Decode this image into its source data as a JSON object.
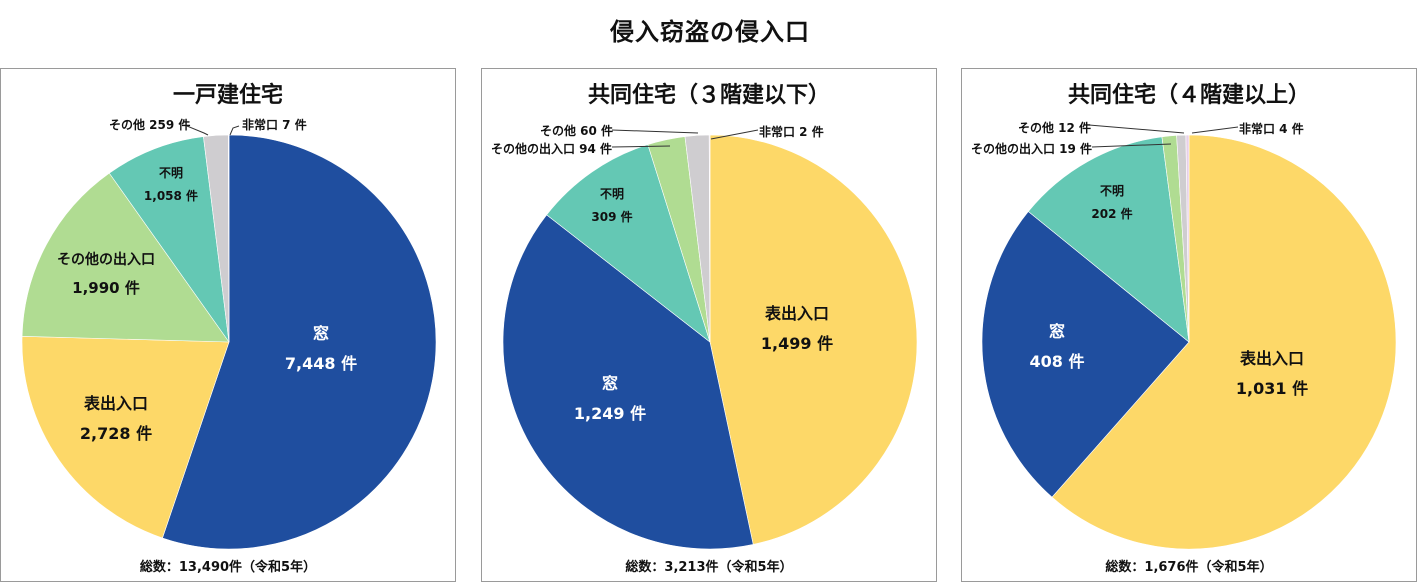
{
  "title": "侵入窃盗の侵入口",
  "colors": {
    "窓": "#1f4e9f",
    "表出入口": "#fdd868",
    "その他の出入口": "#b0dc92",
    "不明": "#64c8b4",
    "その他": "#cfcdd0",
    "非常口": "#e8d0e8"
  },
  "panels": [
    {
      "title": "一戸建住宅",
      "total_label": "総数：13,490件（令和5年）",
      "labels": {
        "window": [
          "窓",
          "7,448 件"
        ],
        "front": [
          "表出入口",
          "2,728 件"
        ],
        "other_entrance": [
          "その他の出入口",
          "1,990 件"
        ],
        "unknown": [
          "不明",
          "1,058 件"
        ],
        "other": "その他 259 件",
        "emergency": "非常口 7 件"
      }
    },
    {
      "title": "共同住宅（３階建以下）",
      "total_label": "総数：3,213件（令和5年）",
      "labels": {
        "front": [
          "表出入口",
          "1,499 件"
        ],
        "window": [
          "窓",
          "1,249 件"
        ],
        "unknown": [
          "不明",
          "309 件"
        ],
        "other_entrance": "その他の出入口 94 件",
        "other": "その他 60 件",
        "emergency": "非常口 2 件"
      }
    },
    {
      "title": "共同住宅（４階建以上）",
      "total_label": "総数：1,676件（令和5年）",
      "labels": {
        "front": [
          "表出入口",
          "1,031 件"
        ],
        "window": [
          "窓",
          "408 件"
        ],
        "unknown": [
          "不明",
          "202 件"
        ],
        "other_entrance": "その他の出入口 19 件",
        "other": "その他 12 件",
        "emergency": "非常口 4 件"
      }
    }
  ],
  "chart_data": [
    {
      "type": "pie",
      "title": "一戸建住宅",
      "categories": [
        "窓",
        "表出入口",
        "その他の出入口",
        "不明",
        "その他",
        "非常口"
      ],
      "values": [
        7448,
        2728,
        1990,
        1058,
        259,
        7
      ],
      "total": 13490,
      "unit": "件",
      "note": "令和5年"
    },
    {
      "type": "pie",
      "title": "共同住宅（３階建以下）",
      "categories": [
        "表出入口",
        "窓",
        "不明",
        "その他の出入口",
        "その他",
        "非常口"
      ],
      "values": [
        1499,
        1249,
        309,
        94,
        60,
        2
      ],
      "total": 3213,
      "unit": "件",
      "note": "令和5年"
    },
    {
      "type": "pie",
      "title": "共同住宅（４階建以上）",
      "categories": [
        "表出入口",
        "窓",
        "不明",
        "その他の出入口",
        "その他",
        "非常口"
      ],
      "values": [
        1031,
        408,
        202,
        19,
        12,
        4
      ],
      "total": 1676,
      "unit": "件",
      "note": "令和5年"
    }
  ]
}
